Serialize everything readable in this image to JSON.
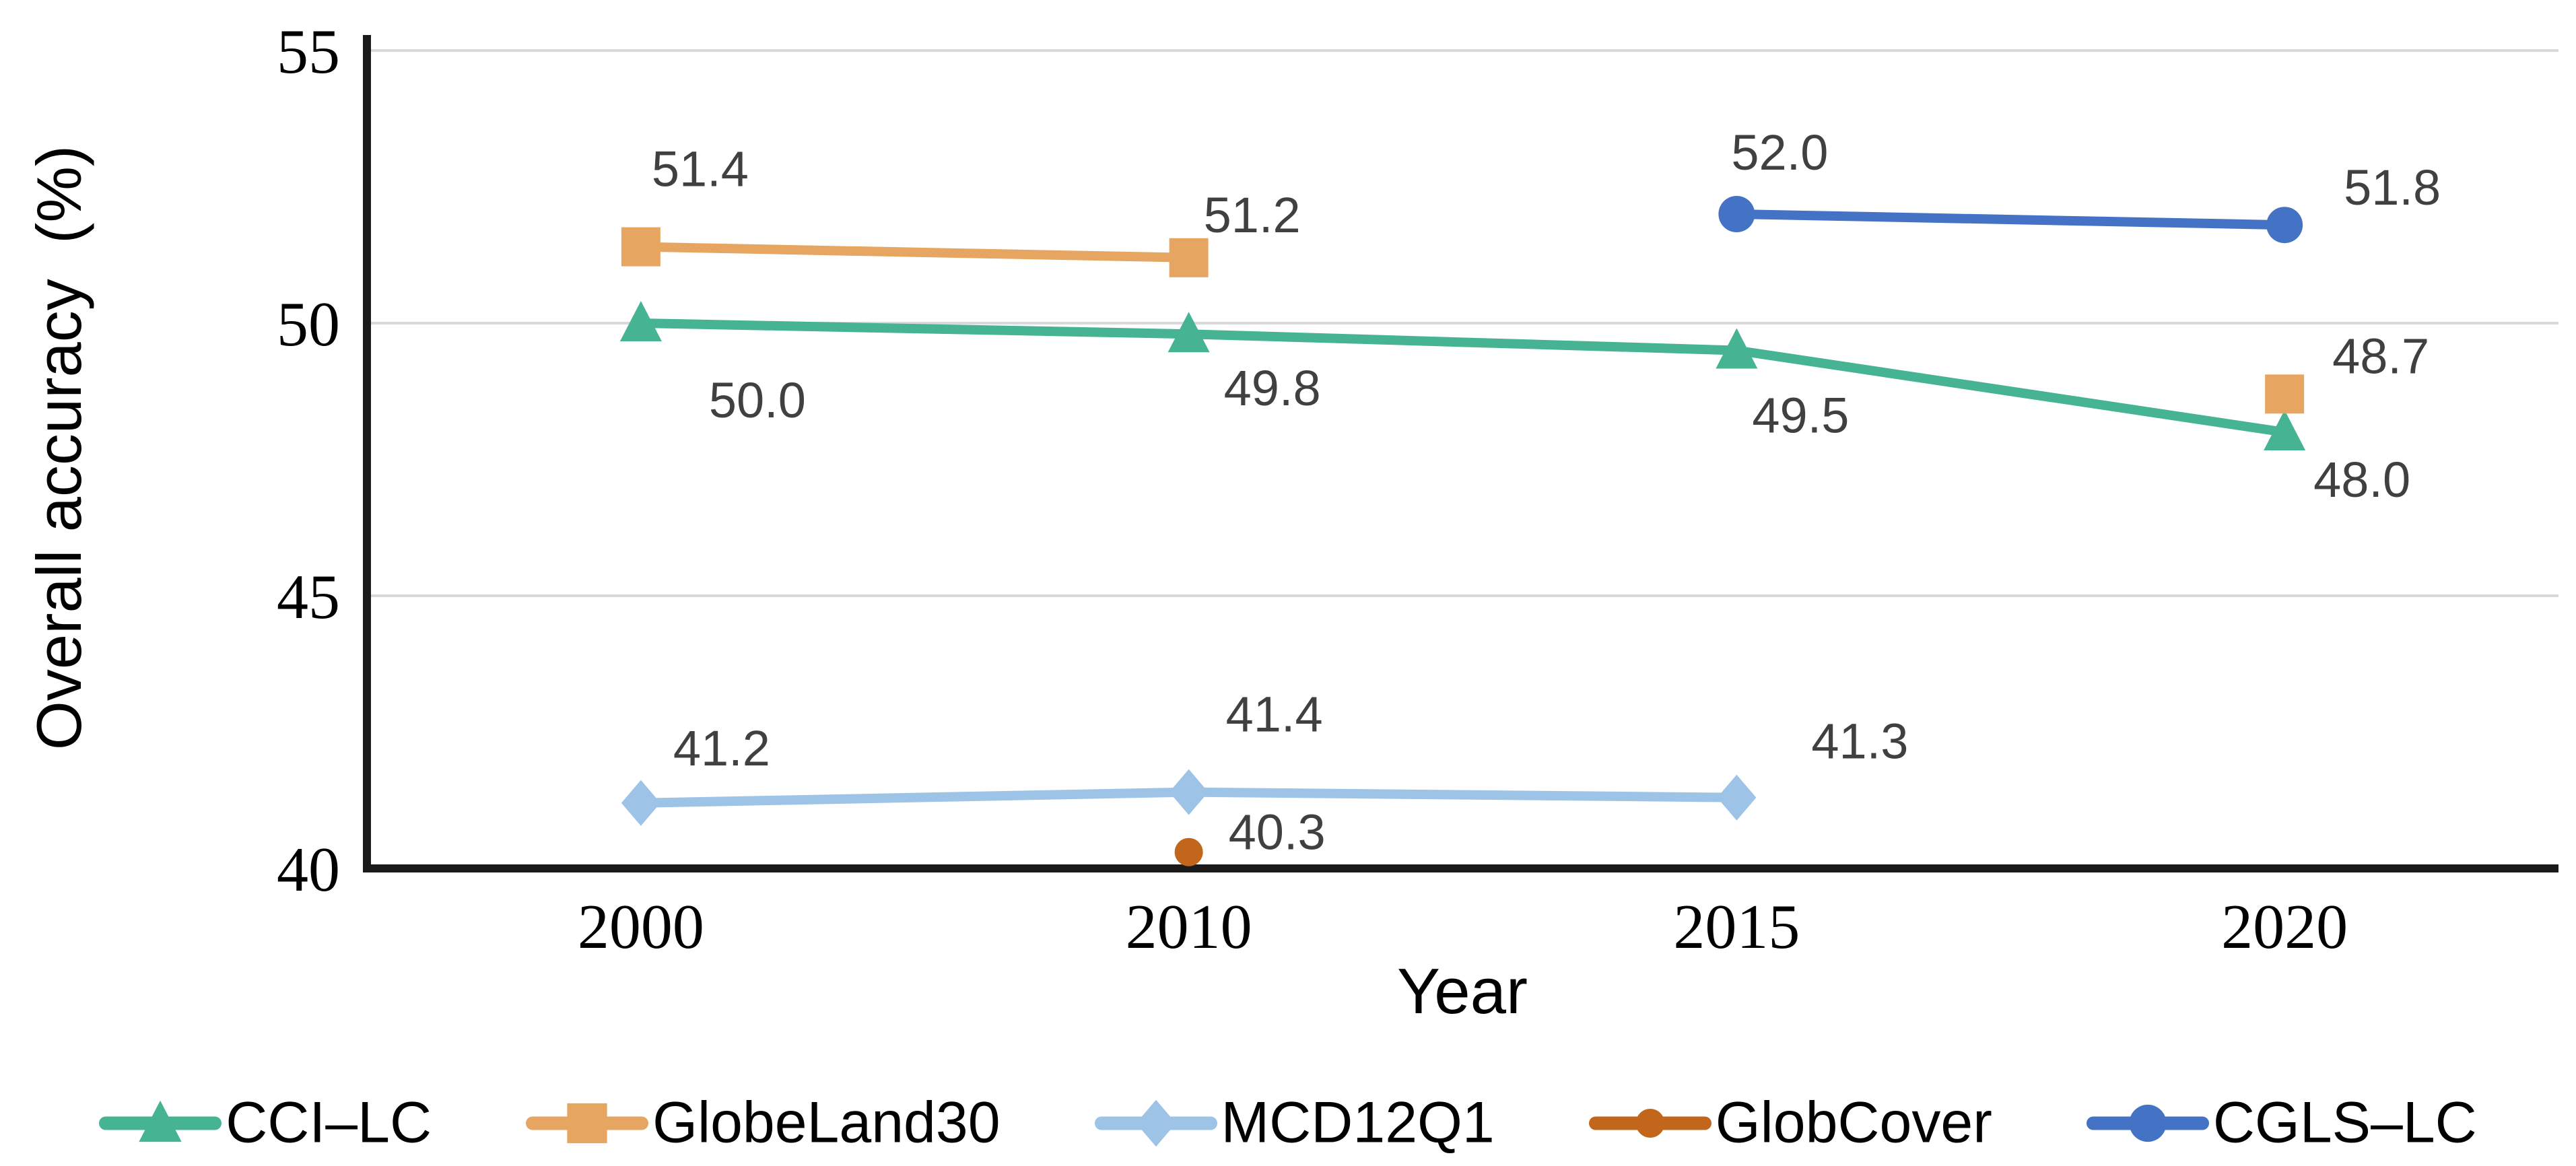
{
  "chart_data": {
    "type": "line",
    "title": "",
    "xlabel": "Year",
    "ylabel": "Overall accuracy  (%)",
    "categories": [
      "2000",
      "2010",
      "2015",
      "2020"
    ],
    "ylim": [
      40,
      55
    ],
    "yticks": [
      55,
      50,
      45,
      40
    ],
    "grid": "horizontal-light",
    "legend_position": "bottom",
    "colors": {
      "grid": "#D9D9D9",
      "axis": "#1A1A1A",
      "tick_text": "#000000",
      "data_label": "#404040",
      "background": "#FFFFFF"
    },
    "series": [
      {
        "id": "cci-lc",
        "name": "CCI–LC",
        "color": "#46B492",
        "marker": "triangle",
        "points": [
          {
            "category": "2000",
            "value": 50.0,
            "label": "50.0",
            "label_offset": [
              173,
              113
            ]
          },
          {
            "category": "2010",
            "value": 49.8,
            "label": "49.8",
            "label_offset": [
              124,
              79
            ]
          },
          {
            "category": "2015",
            "value": 49.5,
            "label": "49.5",
            "label_offset": [
              95,
              95
            ]
          },
          {
            "category": "2020",
            "value": 48.0,
            "label": "48.0",
            "label_offset": [
              115,
              69
            ]
          }
        ],
        "line_through": [
          "2000",
          "2010",
          "2015",
          "2020"
        ]
      },
      {
        "id": "globeland30",
        "name": "GlobeLand30",
        "color": "#E6A561",
        "marker": "square",
        "points": [
          {
            "category": "2000",
            "value": 51.4,
            "label": "51.4",
            "label_offset": [
              88,
              -117
            ]
          },
          {
            "category": "2010",
            "value": 51.2,
            "label": "51.2",
            "label_offset": [
              94,
              -65
            ]
          },
          {
            "category": "2020",
            "value": 48.7,
            "label": "48.7",
            "label_offset": [
              143,
              -58
            ]
          }
        ],
        "line_through": [
          "2000",
          "2010"
        ]
      },
      {
        "id": "mcd12q1",
        "name": "MCD12Q1",
        "color": "#9DC3E6",
        "marker": "diamond",
        "points": [
          {
            "category": "2000",
            "value": 41.2,
            "label": "41.2",
            "label_offset": [
              120,
              -83
            ]
          },
          {
            "category": "2010",
            "value": 41.4,
            "label": "41.4",
            "label_offset": [
              127,
              -117
            ]
          },
          {
            "category": "2015",
            "value": 41.3,
            "label": "41.3",
            "label_offset": [
              183,
              -85
            ]
          }
        ],
        "line_through": [
          "2000",
          "2010",
          "2015"
        ]
      },
      {
        "id": "globcover",
        "name": "GlobCover",
        "color": "#C2661C",
        "marker": "dot",
        "points": [
          {
            "category": "2010",
            "value": 40.3,
            "label": "40.3",
            "label_offset": [
              131,
              -31
            ]
          }
        ],
        "line_through": []
      },
      {
        "id": "cgls-lc",
        "name": "CGLS–LC",
        "color": "#4472C4",
        "marker": "circle",
        "points": [
          {
            "category": "2015",
            "value": 52.0,
            "label": "52.0",
            "label_offset": [
              64,
              -93
            ]
          },
          {
            "category": "2020",
            "value": 51.8,
            "label": "51.8",
            "label_offset": [
              160,
              -57
            ]
          }
        ],
        "line_through": [
          "2015",
          "2020"
        ]
      }
    ]
  }
}
